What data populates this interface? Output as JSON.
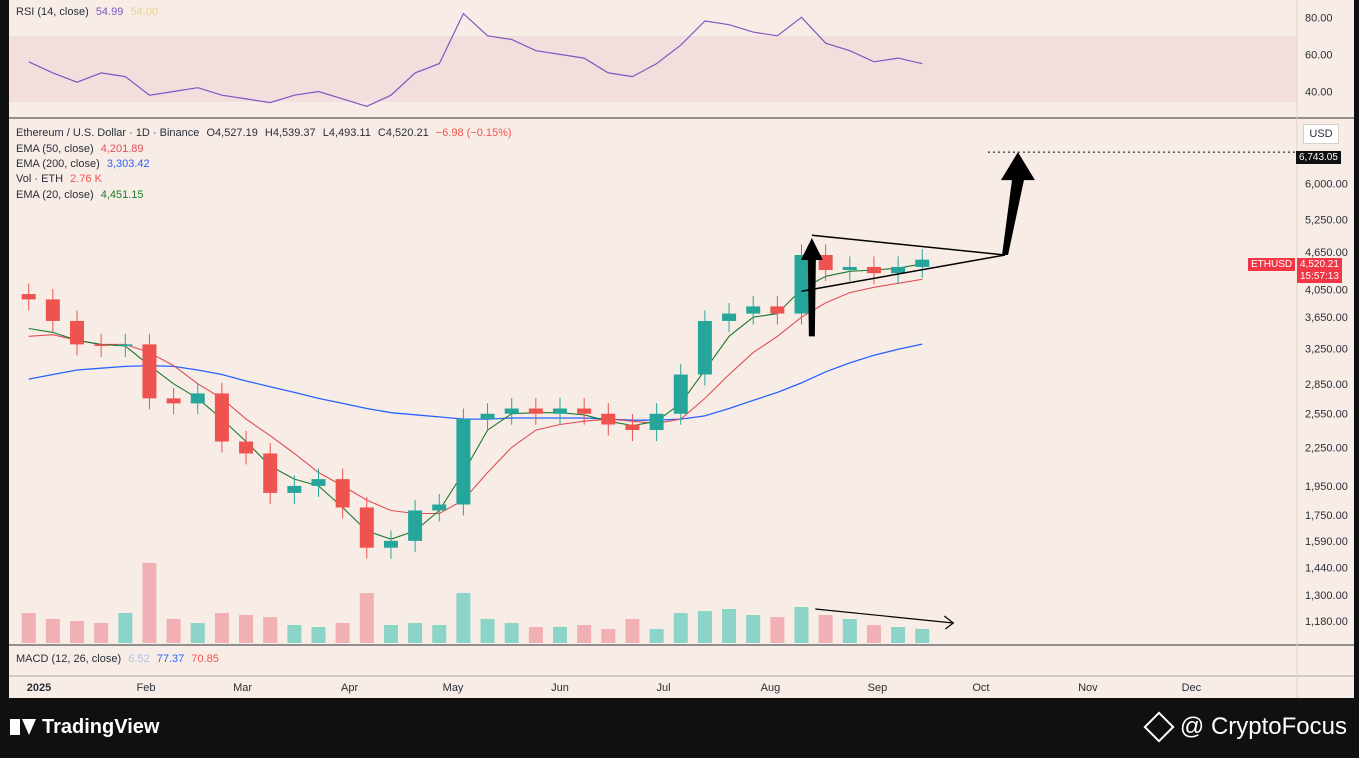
{
  "rsi": {
    "label": "RSI (14, close)",
    "value": "54.99",
    "ma_value": "54.00",
    "axis_ticks": [
      "80.00",
      "60.00",
      "40.00"
    ]
  },
  "legend": {
    "symbol_line": "Ethereum / U.S. Dollar · 1D · Binance",
    "ohlc": {
      "o": "O4,527.19",
      "h": "H4,539.37",
      "l": "L4,493.11",
      "c": "C4,520.21",
      "chg": "−6.98 (−0.15%)"
    },
    "ema50": {
      "label": "EMA (50, close)",
      "value": "4,201.89"
    },
    "ema200": {
      "label": "EMA (200, close)",
      "value": "3,303.42"
    },
    "vol": {
      "label": "Vol · ETH",
      "value": "2.76 K"
    },
    "ema20": {
      "label": "EMA (20, close)",
      "value": "4,451.15"
    }
  },
  "currency_button": "USD",
  "price_axis_ticks": [
    "6,000.00",
    "5,250.00",
    "4,650.00",
    "4,050.00",
    "3,650.00",
    "3,250.00",
    "2,850.00",
    "2,550.00",
    "2,250.00",
    "1,950.00",
    "1,750.00",
    "1,590.00",
    "1,440.00",
    "1,300.00",
    "1,180.00"
  ],
  "target_label": "6,743.05",
  "ticker_tag": {
    "symbol": "ETHUSD",
    "price": "4,520.21",
    "countdown": "15:57:13"
  },
  "macd": {
    "label": "MACD (12, 26, close)",
    "v1": "6.52",
    "v2": "77.37",
    "v3": "70.85"
  },
  "time_axis": [
    "2025",
    "Feb",
    "Mar",
    "Apr",
    "May",
    "Jun",
    "Jul",
    "Aug",
    "Sep",
    "Oct",
    "Nov",
    "Dec"
  ],
  "footer": {
    "brand": "TradingView",
    "handle": "@ CryptoFocus"
  },
  "colors": {
    "background": "#f8ede6",
    "up": "#26a69a",
    "down": "#ef5350",
    "ema20": "#1b7a2c",
    "ema50": "#e04e55",
    "ema200": "#2962ff",
    "rsi": "#7e57c2",
    "ticker": "#f23645"
  },
  "chart_data": {
    "type": "candlestick",
    "timeframe": "1D",
    "x_start": "2024-12-23",
    "x": [
      "2024-12-29",
      "2025-01-05",
      "2025-01-12",
      "2025-01-19",
      "2025-01-26",
      "2025-02-02",
      "2025-02-09",
      "2025-02-16",
      "2025-02-23",
      "2025-03-02",
      "2025-03-09",
      "2025-03-16",
      "2025-03-23",
      "2025-03-30",
      "2025-04-06",
      "2025-04-13",
      "2025-04-20",
      "2025-04-27",
      "2025-05-04",
      "2025-05-11",
      "2025-05-18",
      "2025-05-25",
      "2025-06-01",
      "2025-06-08",
      "2025-06-15",
      "2025-06-22",
      "2025-06-29",
      "2025-07-06",
      "2025-07-13",
      "2025-07-20",
      "2025-07-27",
      "2025-08-03",
      "2025-08-10",
      "2025-08-17",
      "2025-08-24",
      "2025-08-31",
      "2025-09-07",
      "2025-09-14"
    ],
    "close": [
      3900,
      3600,
      3300,
      3280,
      3300,
      2700,
      2650,
      2750,
      2300,
      2200,
      1900,
      1950,
      2000,
      1800,
      1550,
      1590,
      1780,
      1820,
      2500,
      2550,
      2600,
      2550,
      2600,
      2550,
      2450,
      2400,
      2550,
      2950,
      3600,
      3700,
      3800,
      3700,
      4600,
      4350,
      4400,
      4300,
      4400,
      4520.21
    ],
    "ema20": [
      3500,
      3450,
      3350,
      3300,
      3280,
      3050,
      2850,
      2700,
      2500,
      2300,
      2100,
      2000,
      1950,
      1800,
      1650,
      1600,
      1650,
      1780,
      2050,
      2400,
      2550,
      2560,
      2560,
      2540,
      2480,
      2440,
      2480,
      2650,
      3000,
      3400,
      3650,
      3700,
      4050,
      4250,
      4330,
      4350,
      4380,
      4451.15
    ],
    "ema50": [
      3400,
      3420,
      3350,
      3300,
      3300,
      3200,
      3050,
      2850,
      2700,
      2500,
      2350,
      2200,
      2050,
      1950,
      1850,
      1780,
      1760,
      1760,
      1850,
      2050,
      2250,
      2400,
      2450,
      2480,
      2500,
      2480,
      2460,
      2500,
      2700,
      2950,
      3200,
      3400,
      3650,
      3850,
      4000,
      4080,
      4140,
      4201.89
    ],
    "ema200": [
      2900,
      2950,
      3000,
      3020,
      3040,
      3050,
      3040,
      3000,
      2950,
      2880,
      2820,
      2760,
      2700,
      2650,
      2600,
      2560,
      2540,
      2520,
      2500,
      2500,
      2510,
      2510,
      2510,
      2510,
      2500,
      2490,
      2490,
      2500,
      2530,
      2600,
      2680,
      2760,
      2860,
      2980,
      3080,
      3170,
      3240,
      3303.42
    ],
    "volume": [
      1.5,
      1.2,
      1.1,
      1.0,
      1.5,
      4.0,
      1.2,
      1.0,
      1.5,
      1.4,
      1.3,
      0.9,
      0.8,
      1.0,
      2.5,
      0.9,
      1.0,
      0.9,
      2.5,
      1.2,
      1.0,
      0.8,
      0.8,
      0.9,
      0.7,
      1.2,
      0.7,
      1.5,
      1.6,
      1.7,
      1.4,
      1.3,
      1.8,
      1.4,
      1.2,
      0.9,
      0.8,
      0.7
    ],
    "rsi": [
      56,
      50,
      45,
      50,
      48,
      38,
      40,
      42,
      38,
      36,
      34,
      38,
      40,
      36,
      32,
      38,
      50,
      55,
      82,
      70,
      68,
      62,
      60,
      58,
      50,
      48,
      55,
      65,
      78,
      76,
      72,
      70,
      80,
      66,
      62,
      56,
      58,
      54.99
    ],
    "y_axis": {
      "scale": "log",
      "min": 1100,
      "max": 7000
    },
    "rsi_axis": {
      "min": 30,
      "max": 85,
      "band": [
        30,
        70
      ]
    },
    "annotations": {
      "target": 6743.05,
      "pennant_top": [
        [
          "2025-08-13",
          4950
        ],
        [
          "2025-10-08",
          4600
        ]
      ],
      "pennant_bottom": [
        [
          "2025-08-10",
          4020
        ],
        [
          "2025-10-08",
          4600
        ]
      ],
      "flagpole": [
        [
          "2025-08-13",
          3400
        ],
        [
          "2025-08-13",
          4900
        ]
      ],
      "breakout": [
        [
          "2025-10-08",
          4600
        ],
        [
          "2025-10-10",
          6743.05
        ]
      ],
      "volume_trend": [
        [
          "2025-08-14",
          1.7
        ],
        [
          "2025-09-23",
          1.0
        ]
      ]
    }
  }
}
